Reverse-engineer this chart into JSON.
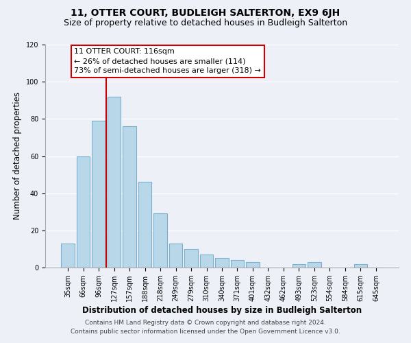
{
  "title": "11, OTTER COURT, BUDLEIGH SALTERTON, EX9 6JH",
  "subtitle": "Size of property relative to detached houses in Budleigh Salterton",
  "xlabel": "Distribution of detached houses by size in Budleigh Salterton",
  "ylabel": "Number of detached properties",
  "bar_labels": [
    "35sqm",
    "66sqm",
    "96sqm",
    "127sqm",
    "157sqm",
    "188sqm",
    "218sqm",
    "249sqm",
    "279sqm",
    "310sqm",
    "340sqm",
    "371sqm",
    "401sqm",
    "432sqm",
    "462sqm",
    "493sqm",
    "523sqm",
    "554sqm",
    "584sqm",
    "615sqm",
    "645sqm"
  ],
  "bar_values": [
    13,
    60,
    79,
    92,
    76,
    46,
    29,
    13,
    10,
    7,
    5,
    4,
    3,
    0,
    0,
    2,
    3,
    0,
    0,
    2,
    0
  ],
  "bar_color": "#b8d8ea",
  "bar_edge_color": "#7ab0cc",
  "vline_x": 2.5,
  "vline_color": "#cc0000",
  "ylim": [
    0,
    120
  ],
  "yticks": [
    0,
    20,
    40,
    60,
    80,
    100,
    120
  ],
  "annotation_title": "11 OTTER COURT: 116sqm",
  "annotation_line1": "← 26% of detached houses are smaller (114)",
  "annotation_line2": "73% of semi-detached houses are larger (318) →",
  "annotation_box_color": "#ffffff",
  "annotation_box_edge": "#cc0000",
  "footer1": "Contains HM Land Registry data © Crown copyright and database right 2024.",
  "footer2": "Contains public sector information licensed under the Open Government Licence v3.0.",
  "background_color": "#eef0f8",
  "grid_color": "#ffffff",
  "title_fontsize": 10,
  "subtitle_fontsize": 9,
  "axis_label_fontsize": 8.5,
  "tick_fontsize": 7,
  "annotation_fontsize": 8,
  "footer_fontsize": 6.5
}
